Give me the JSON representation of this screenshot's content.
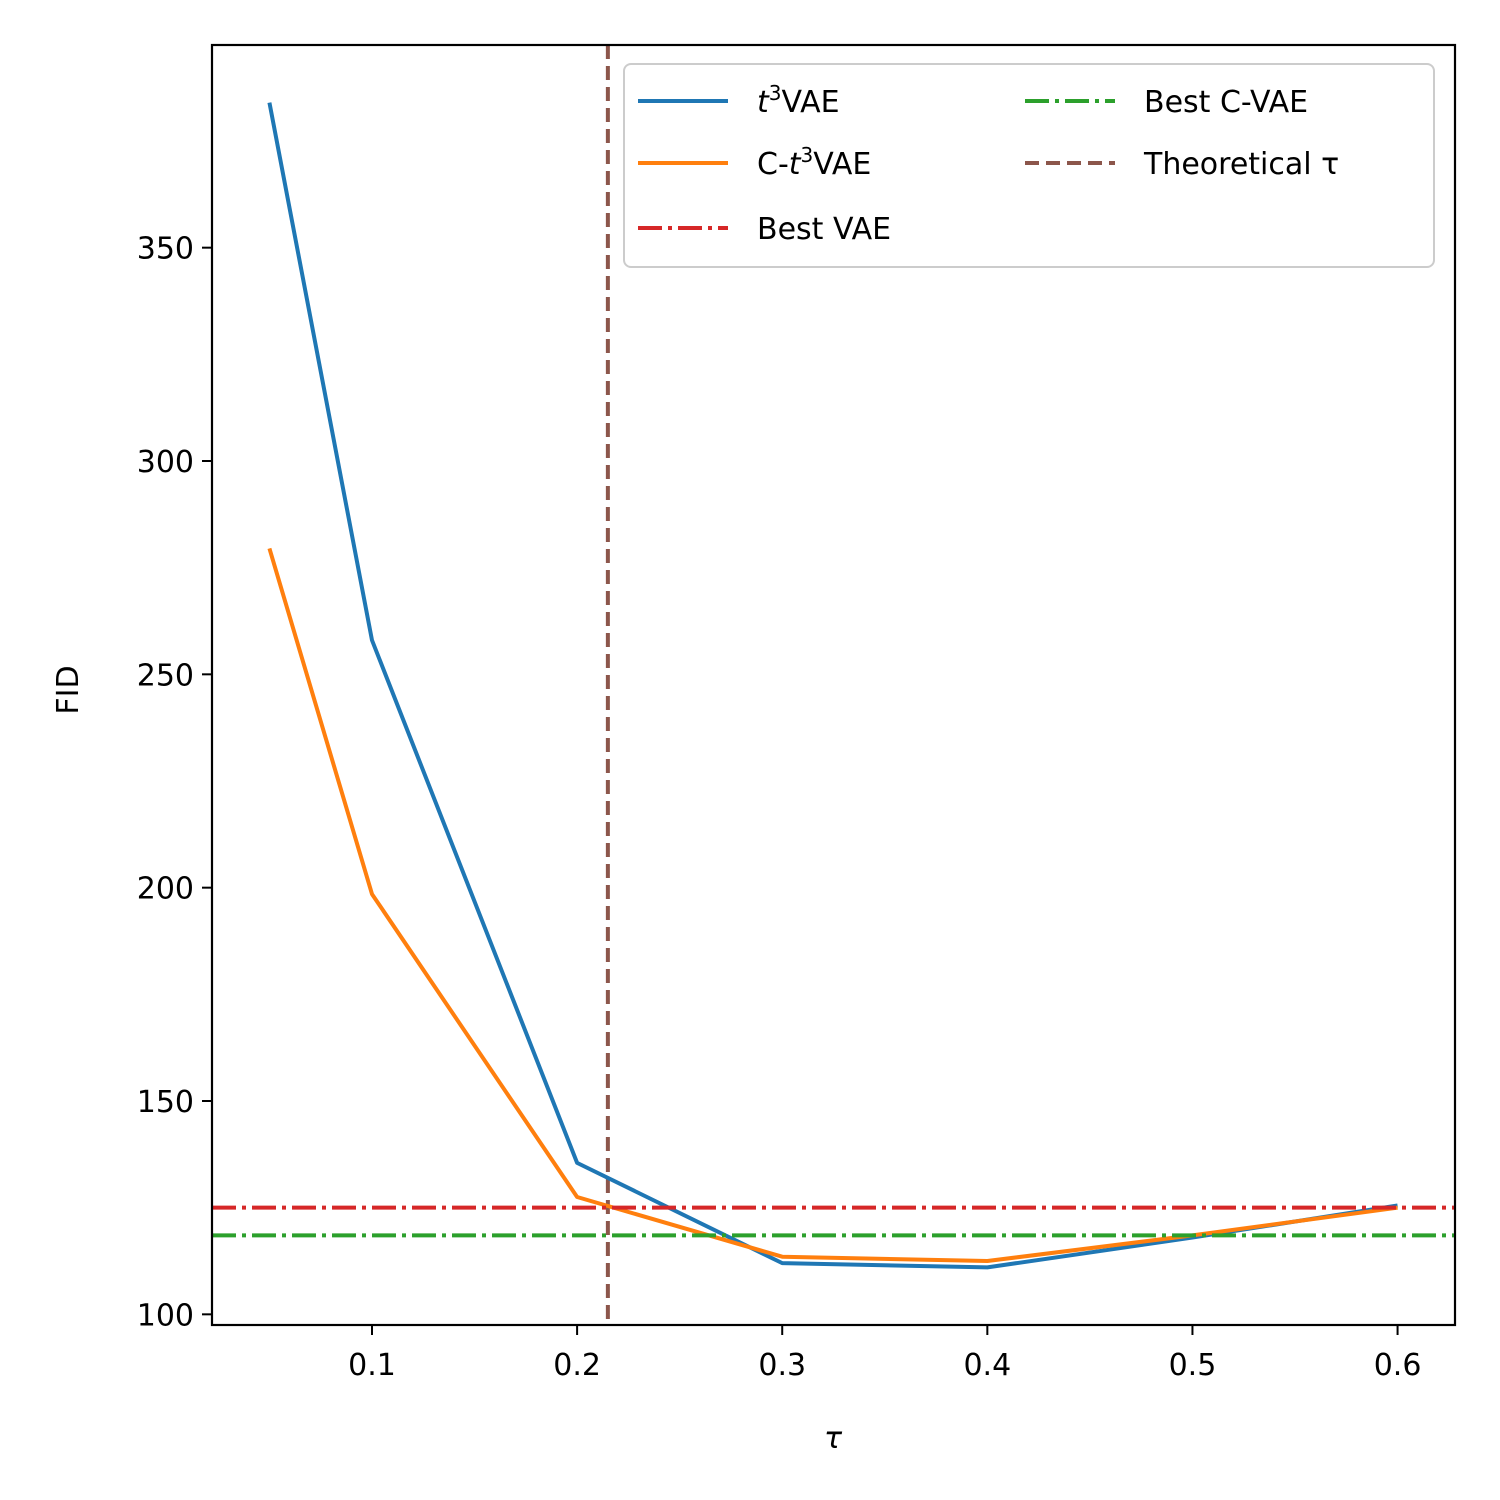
{
  "chart_data": {
    "type": "line",
    "xlabel": "τ",
    "ylabel": "FID",
    "xlim": [
      0.022,
      0.628
    ],
    "ylim": [
      97.5,
      397.5
    ],
    "xticks": [
      {
        "value": 0.1,
        "label": "0.1"
      },
      {
        "value": 0.2,
        "label": "0.2"
      },
      {
        "value": 0.3,
        "label": "0.3"
      },
      {
        "value": 0.4,
        "label": "0.4"
      },
      {
        "value": 0.5,
        "label": "0.5"
      },
      {
        "value": 0.6,
        "label": "0.6"
      }
    ],
    "yticks": [
      {
        "value": 100,
        "label": "100"
      },
      {
        "value": 150,
        "label": "150"
      },
      {
        "value": 200,
        "label": "200"
      },
      {
        "value": 250,
        "label": "250"
      },
      {
        "value": 300,
        "label": "300"
      },
      {
        "value": 350,
        "label": "350"
      }
    ],
    "x": [
      0.05,
      0.1,
      0.2,
      0.3,
      0.4,
      0.5,
      0.6
    ],
    "series": [
      {
        "name": "t³VAE",
        "label_base": "t",
        "label_sup": "3",
        "label_rest": "VAE",
        "color": "#1f77b4",
        "style": "solid",
        "values": [
          384,
          258,
          135.5,
          112,
          111,
          118,
          125.5
        ]
      },
      {
        "name": "C-t³VAE",
        "label_prefix": "C-",
        "label_base": "t",
        "label_sup": "3",
        "label_rest": "VAE",
        "color": "#ff7f0e",
        "style": "solid",
        "values": [
          279.5,
          198.5,
          127.5,
          113.5,
          112.5,
          118.5,
          125
        ]
      }
    ],
    "hlines": [
      {
        "name": "Best VAE",
        "value": 125,
        "color": "#d62728",
        "style": "dashdot"
      },
      {
        "name": "Best C-VAE",
        "value": 118.5,
        "color": "#2ca02c",
        "style": "dashdot"
      }
    ],
    "vlines": [
      {
        "name": "Theoretical τ",
        "value": 0.215,
        "color": "#8c564b",
        "style": "dashed"
      }
    ],
    "legend": {
      "location": "top-right",
      "columns": 2,
      "entries": [
        {
          "key": "t3vae",
          "text_base": "t",
          "text_sup": "3",
          "text_rest": "VAE",
          "color": "#1f77b4",
          "style": "solid"
        },
        {
          "key": "c-t3vae",
          "text_prefix": "C-",
          "text_base": "t",
          "text_sup": "3",
          "text_rest": "VAE",
          "color": "#ff7f0e",
          "style": "solid"
        },
        {
          "key": "best-vae",
          "text": "Best VAE",
          "color": "#d62728",
          "style": "dashdot"
        },
        {
          "key": "best-c-vae",
          "text": "Best C-VAE",
          "color": "#2ca02c",
          "style": "dashdot"
        },
        {
          "key": "theoretical-tau",
          "text": "Theoretical τ",
          "color": "#8c564b",
          "style": "dashed"
        }
      ]
    }
  }
}
